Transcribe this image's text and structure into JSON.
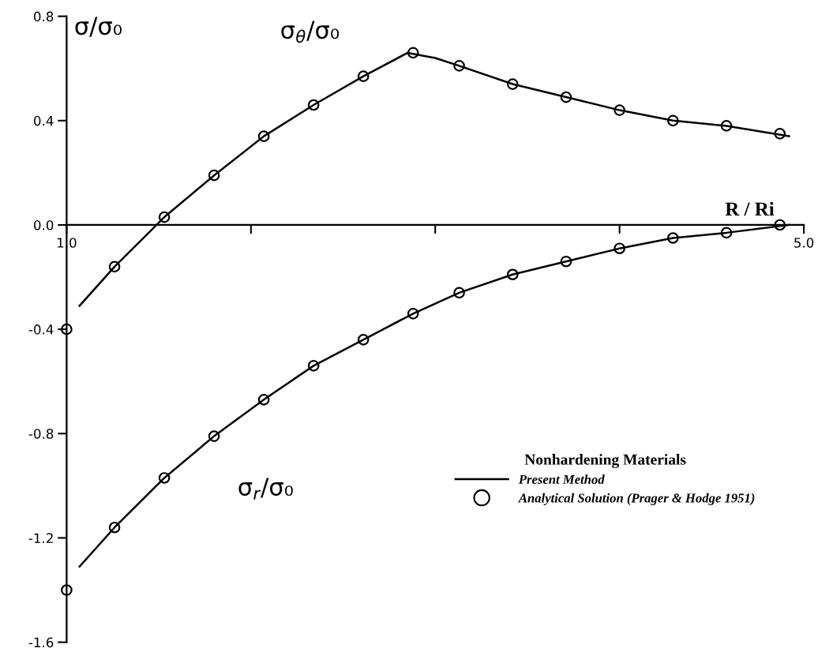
{
  "chart_data": {
    "type": "line",
    "ylabel": "σ/σ₀",
    "xlabel": "R / Ri",
    "legend_title": "Nonhardening Materials",
    "xlim": [
      1.0,
      5.0
    ],
    "ylim": [
      -1.6,
      0.8
    ],
    "xticks": [
      {
        "value": 1.0,
        "label": "1.0"
      },
      {
        "value": 2,
        "label": null
      },
      {
        "value": 3,
        "label": null
      },
      {
        "value": 4,
        "label": null
      },
      {
        "value": 5.0,
        "label": "5.0"
      }
    ],
    "yticks": [
      -1.6,
      -1.2,
      -0.8,
      -0.4,
      {
        "value": 0.0,
        "label": "0.0"
      },
      0.4,
      0.8
    ],
    "grid": false,
    "legend": "bottom right",
    "annotations": [
      "σ$_{θ}$/σ₀",
      "σ$_{r}$/σ₀"
    ],
    "series": [
      {
        "name": "Present Method",
        "color": "#000000",
        "marker": "none",
        "line_style": "solid",
        "x": [
          1.07,
          1.26,
          1.53,
          1.8,
          2.07,
          2.34,
          2.61,
          2.85,
          3.0,
          3.13,
          3.42,
          3.71,
          4.0,
          4.29,
          4.58,
          4.92
        ],
        "values": [
          -0.31,
          -0.16,
          0.03,
          0.19,
          0.34,
          0.46,
          0.57,
          0.66,
          0.64,
          0.61,
          0.54,
          0.49,
          0.44,
          0.4,
          0.38,
          0.34
        ]
      },
      {
        "color": "#000000",
        "marker": "none",
        "line_style": "solid",
        "x": [
          1.07,
          1.26,
          1.53,
          1.8,
          2.07,
          2.34,
          2.61,
          2.88,
          3.13,
          3.42,
          3.71,
          4.0,
          4.29,
          4.58,
          4.92
        ],
        "values": [
          -1.31,
          -1.16,
          -0.97,
          -0.81,
          -0.67,
          -0.54,
          -0.44,
          -0.34,
          -0.26,
          -0.19,
          -0.14,
          -0.09,
          -0.05,
          -0.03,
          0.0
        ]
      },
      {
        "name": "Analytical Solution (Prager & Hodge 1951)",
        "type": "scatter",
        "color": "#000000",
        "marker": "circle",
        "x": [
          1.0,
          1.26,
          1.53,
          1.8,
          2.07,
          2.34,
          2.61,
          2.88,
          3.13,
          3.42,
          3.71,
          4.0,
          4.29,
          4.58,
          4.87
        ],
        "values": [
          -0.4,
          -0.16,
          0.03,
          0.19,
          0.34,
          0.46,
          0.57,
          0.66,
          0.61,
          0.54,
          0.49,
          0.44,
          0.4,
          0.38,
          0.35
        ]
      },
      {
        "type": "scatter",
        "color": "#000000",
        "marker": "circle",
        "x": [
          1.0,
          1.26,
          1.53,
          1.8,
          2.07,
          2.34,
          2.61,
          2.88,
          3.13,
          3.42,
          3.71,
          4.0,
          4.29,
          4.58,
          4.87
        ],
        "values": [
          -1.4,
          -1.16,
          -0.97,
          -0.81,
          -0.67,
          -0.54,
          -0.44,
          -0.34,
          -0.26,
          -0.19,
          -0.14,
          -0.09,
          -0.05,
          -0.03,
          0.0
        ]
      }
    ]
  }
}
